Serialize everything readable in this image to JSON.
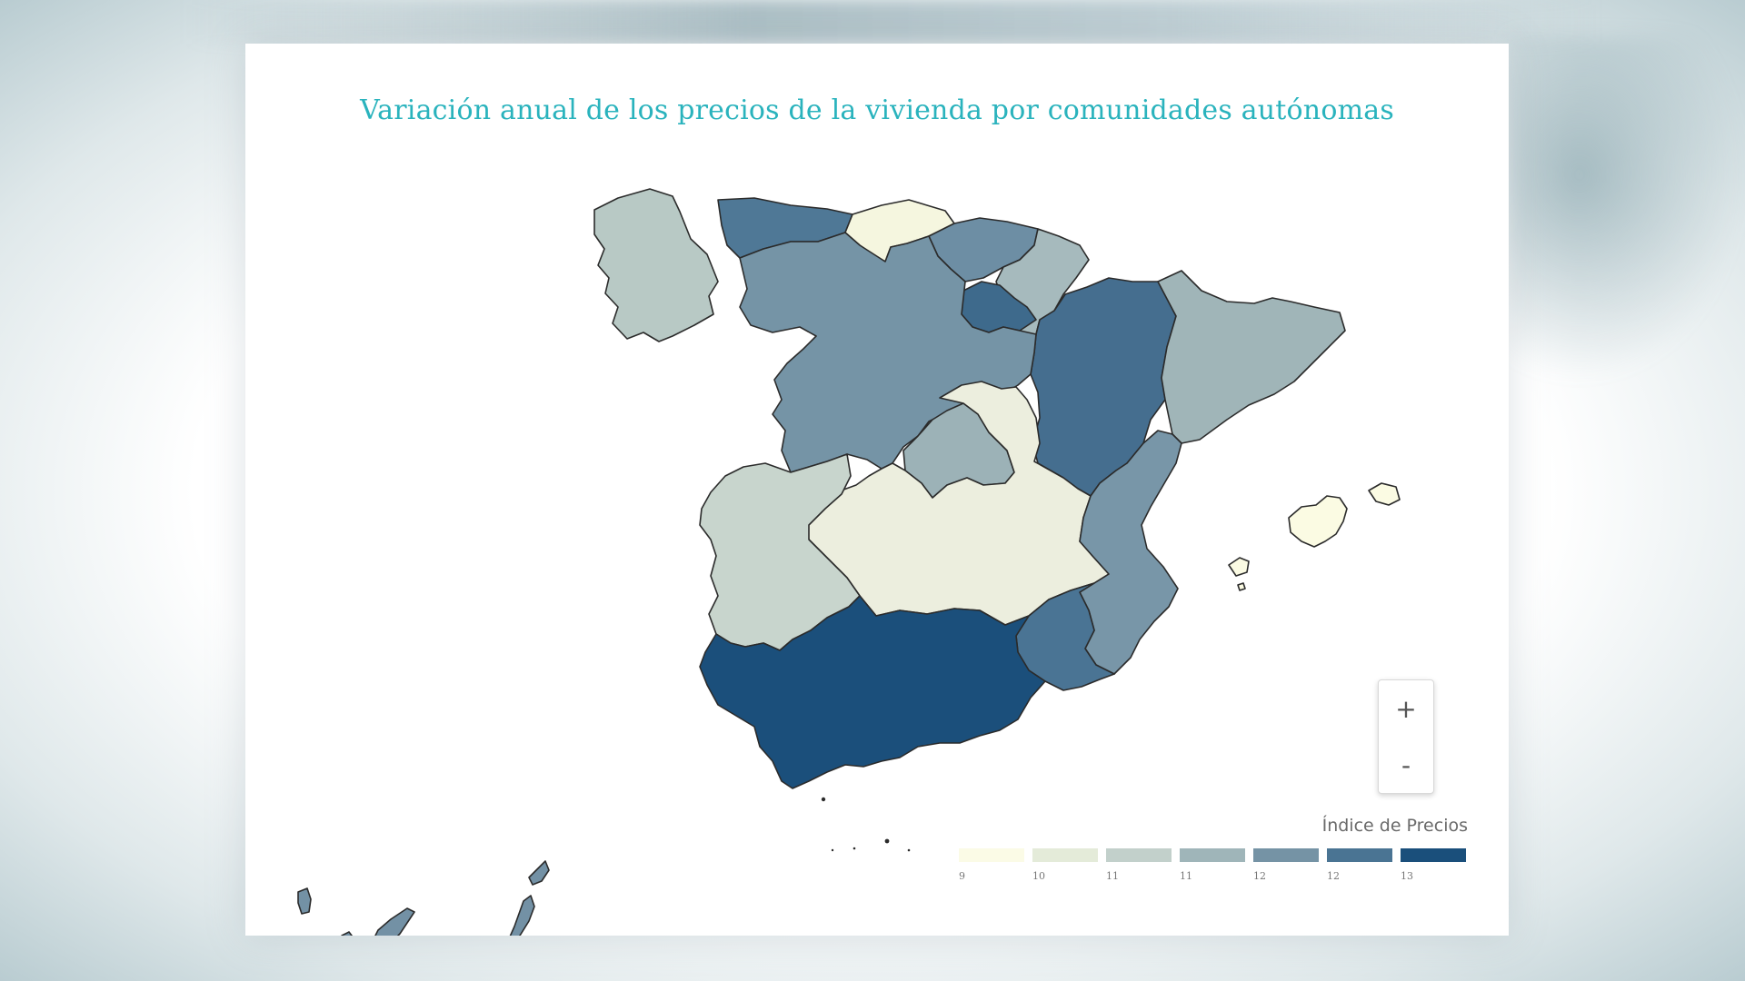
{
  "title": "Variación anual de los precios de la vivienda por comunidades autónomas",
  "legend": {
    "title": "Índice de Precios",
    "bins": [
      {
        "label": "9",
        "color": "#fbfbe6"
      },
      {
        "label": "10",
        "color": "#e4ebd9"
      },
      {
        "label": "11",
        "color": "#c2d0cb"
      },
      {
        "label": "11",
        "color": "#9fb5b9"
      },
      {
        "label": "12",
        "color": "#7593a5"
      },
      {
        "label": "12",
        "color": "#4a7493"
      },
      {
        "label": "13",
        "color": "#1a4f7b"
      }
    ]
  },
  "zoom": {
    "in_label": "+",
    "out_label": "-"
  },
  "regions": [
    {
      "key": "galicia",
      "color": "#b8c9c5"
    },
    {
      "key": "asturias",
      "color": "#4f7896"
    },
    {
      "key": "cantabria",
      "color": "#f5f6df"
    },
    {
      "key": "pais-vasco",
      "color": "#6d8ea4"
    },
    {
      "key": "navarra",
      "color": "#a6babd"
    },
    {
      "key": "la-rioja",
      "color": "#3e6a8c"
    },
    {
      "key": "aragon",
      "color": "#456e8f"
    },
    {
      "key": "cataluna",
      "color": "#a0b5b8"
    },
    {
      "key": "castilla-y-leon",
      "color": "#7594a6"
    },
    {
      "key": "madrid",
      "color": "#9cb2b7"
    },
    {
      "key": "castilla-la-mancha",
      "color": "#eceede"
    },
    {
      "key": "extremadura",
      "color": "#c8d5cd"
    },
    {
      "key": "comunidad-valenciana",
      "color": "#7896a8"
    },
    {
      "key": "murcia",
      "color": "#4a7494"
    },
    {
      "key": "andalucia",
      "color": "#1b4f7b"
    },
    {
      "key": "baleares",
      "color": "#fbfbe3"
    },
    {
      "key": "canarias",
      "color": "#7391a5"
    }
  ]
}
